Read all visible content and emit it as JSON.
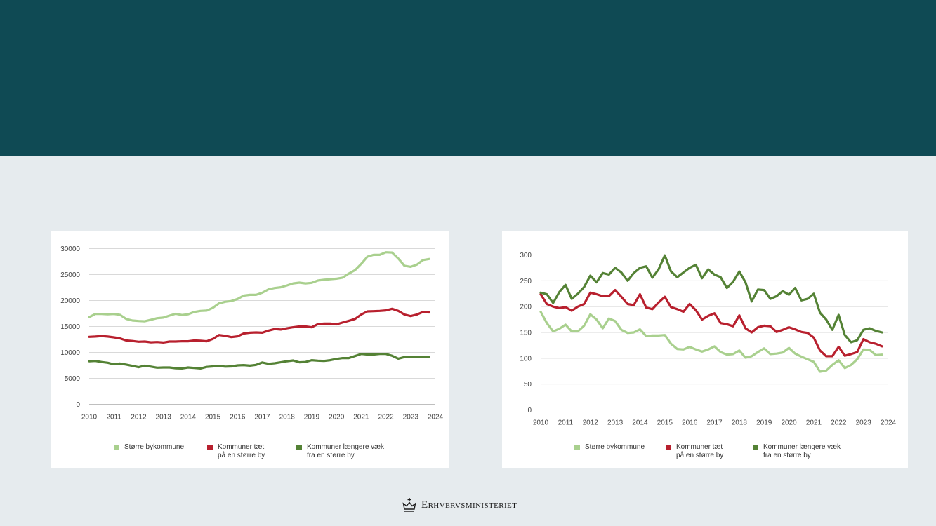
{
  "brand": {
    "ministry_name": "Erhvervsministeriet",
    "logo_icon": "crown-icon"
  },
  "colors": {
    "header": "#0f4a54",
    "background": "#e6ebee",
    "divider": "#3c6f6a"
  },
  "legend_left": [
    {
      "line1": "Større bykommune",
      "line2": "",
      "color": "#a9d08e"
    },
    {
      "line1": "Kommuner tæt",
      "line2": "på en større by",
      "color": "#b8202e"
    },
    {
      "line1": "Kommuner længere væk",
      "line2": "fra en større by",
      "color": "#548235"
    }
  ],
  "legend_right": [
    {
      "line1": "Større bykommune",
      "line2": "",
      "color": "#a9d08e"
    },
    {
      "line1": "Kommuner tæt",
      "line2": "på en større by",
      "color": "#b8202e"
    },
    {
      "line1": "Kommuner længere væk",
      "line2": "fra en større by",
      "color": "#548235"
    }
  ],
  "chart_data": [
    {
      "type": "line",
      "title": "",
      "xlabel": "",
      "ylabel": "",
      "x_start": 2010,
      "x_step": 0.25,
      "xlim": [
        2010,
        2024
      ],
      "ylim": [
        0,
        30000
      ],
      "y_ticks": [
        0,
        5000,
        10000,
        15000,
        20000,
        25000,
        30000
      ],
      "x_ticks": [
        2010,
        2011,
        2012,
        2013,
        2014,
        2015,
        2016,
        2017,
        2018,
        2019,
        2020,
        2021,
        2022,
        2023,
        2024
      ],
      "grid": true,
      "legend_position": "bottom",
      "series": [
        {
          "name": "Større bykommune",
          "color": "#a9d08e",
          "values": [
            16800,
            17400,
            17400,
            17350,
            17400,
            17250,
            16450,
            16150,
            16050,
            16000,
            16300,
            16600,
            16700,
            17100,
            17450,
            17200,
            17350,
            17800,
            18000,
            18050,
            18600,
            19450,
            19750,
            19900,
            20300,
            20950,
            21100,
            21100,
            21500,
            22150,
            22400,
            22550,
            22900,
            23300,
            23450,
            23300,
            23400,
            23850,
            24000,
            24100,
            24200,
            24400,
            25200,
            25850,
            27050,
            28450,
            28800,
            28800,
            29300,
            29250,
            28100,
            26700,
            26500,
            26900,
            27800,
            28000
          ]
        },
        {
          "name": "Kommuner tæt på en større by",
          "color": "#b8202e",
          "values": [
            13000,
            13050,
            13150,
            13050,
            12900,
            12700,
            12300,
            12200,
            12050,
            12100,
            11950,
            12000,
            11900,
            12100,
            12100,
            12150,
            12150,
            12300,
            12250,
            12150,
            12600,
            13350,
            13200,
            12950,
            13100,
            13650,
            13800,
            13850,
            13800,
            14200,
            14500,
            14400,
            14650,
            14850,
            15000,
            15000,
            14850,
            15450,
            15550,
            15550,
            15400,
            15750,
            16100,
            16450,
            17300,
            17900,
            17950,
            18000,
            18100,
            18400,
            18000,
            17300,
            17000,
            17300,
            17800,
            17700
          ]
        },
        {
          "name": "Kommuner længere væk fra en større by",
          "color": "#548235",
          "values": [
            8300,
            8350,
            8150,
            8000,
            7700,
            7850,
            7650,
            7400,
            7150,
            7450,
            7250,
            7050,
            7100,
            7100,
            6950,
            6900,
            7100,
            7000,
            6900,
            7200,
            7300,
            7400,
            7250,
            7300,
            7500,
            7550,
            7450,
            7600,
            8050,
            7800,
            7900,
            8100,
            8300,
            8450,
            8100,
            8150,
            8500,
            8400,
            8350,
            8500,
            8750,
            8900,
            8900,
            9300,
            9700,
            9600,
            9600,
            9700,
            9700,
            9350,
            8800,
            9100,
            9100,
            9100,
            9150,
            9100
          ]
        }
      ]
    },
    {
      "type": "line",
      "title": "",
      "xlabel": "",
      "ylabel": "",
      "x_start": 2010,
      "x_step": 0.25,
      "xlim": [
        2010,
        2024
      ],
      "ylim": [
        0,
        300
      ],
      "y_ticks": [
        0,
        50,
        100,
        150,
        200,
        250,
        300
      ],
      "x_ticks": [
        2010,
        2011,
        2012,
        2013,
        2014,
        2015,
        2016,
        2017,
        2018,
        2019,
        2020,
        2021,
        2022,
        2023,
        2024
      ],
      "grid": true,
      "legend_position": "bottom",
      "series": [
        {
          "name": "Større bykommune",
          "color": "#a9d08e",
          "values": [
            190,
            168,
            152,
            157,
            165,
            152,
            152,
            163,
            185,
            175,
            158,
            177,
            172,
            155,
            149,
            150,
            156,
            143,
            144,
            144,
            145,
            128,
            118,
            117,
            122,
            117,
            113,
            117,
            123,
            112,
            107,
            108,
            115,
            101,
            104,
            112,
            119,
            108,
            109,
            111,
            120,
            109,
            103,
            98,
            93,
            74,
            76,
            87,
            96,
            81,
            87,
            98,
            117,
            116,
            106,
            107
          ]
        },
        {
          "name": "Kommuner tæt på en større by",
          "color": "#b8202e",
          "values": [
            224,
            205,
            200,
            197,
            199,
            192,
            200,
            205,
            227,
            224,
            220,
            220,
            232,
            219,
            205,
            203,
            224,
            198,
            195,
            208,
            219,
            199,
            195,
            190,
            205,
            193,
            175,
            182,
            187,
            168,
            166,
            162,
            183,
            158,
            150,
            160,
            163,
            162,
            151,
            155,
            160,
            156,
            151,
            149,
            140,
            115,
            104,
            104,
            122,
            105,
            108,
            112,
            137,
            131,
            128,
            123
          ]
        },
        {
          "name": "Kommuner længere væk fra en større by",
          "color": "#548235",
          "values": [
            227,
            224,
            207,
            228,
            242,
            215,
            225,
            238,
            260,
            247,
            265,
            262,
            275,
            266,
            250,
            265,
            275,
            278,
            256,
            272,
            299,
            268,
            257,
            266,
            275,
            281,
            255,
            272,
            262,
            257,
            236,
            248,
            268,
            247,
            210,
            233,
            232,
            215,
            220,
            230,
            223,
            236,
            212,
            215,
            225,
            188,
            175,
            155,
            184,
            145,
            131,
            135,
            155,
            158,
            153,
            150
          ]
        }
      ]
    }
  ]
}
